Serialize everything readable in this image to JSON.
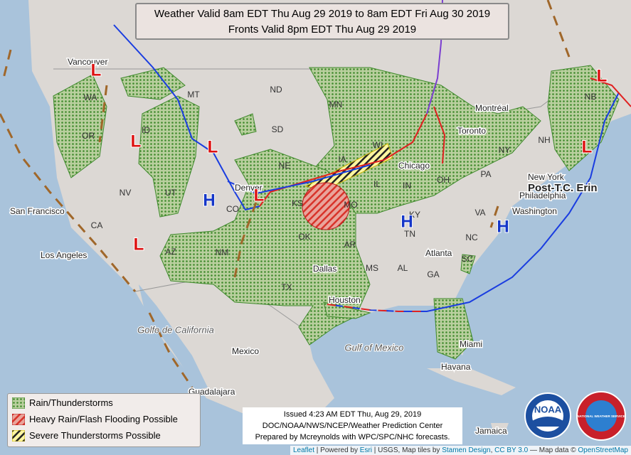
{
  "header": {
    "line1": "Weather Valid 8am EDT Thu Aug 29 2019 to 8am EDT Fri Aug 30 2019",
    "line2": "Fronts Valid 8pm EDT Thu Aug 29 2019"
  },
  "legend": {
    "items": [
      "Rain/Thunderstorms",
      "Heavy Rain/Flash Flooding Possible",
      "Severe Thunderstorms Possible"
    ]
  },
  "issued": {
    "line1": "Issued 4:23 AM EDT Thu, Aug 29, 2019",
    "line2": "DOC/NOAA/NWS/NCEP/Weather Prediction Center",
    "line3": "Prepared by Mcreynolds with WPC/SPC/NHC forecasts."
  },
  "attribution": [
    "Leaflet",
    " | Powered by ",
    "Esri",
    " | USGS, Map tiles by ",
    "Stamen Design",
    ", ",
    "CC BY 3.0",
    " — Map data © ",
    "OpenStreetMap"
  ],
  "logos": {
    "noaa": "NOAA",
    "nws": "NATIONAL WEATHER SERVICE"
  },
  "map": {
    "states": [
      "WA",
      "OR",
      "ID",
      "MT",
      "ND",
      "SD",
      "NE",
      "NV",
      "UT",
      "CO",
      "KS",
      "MN",
      "IA",
      "WI",
      "IL",
      "MO",
      "AZ",
      "NM",
      "OK",
      "TX",
      "AR",
      "MS",
      "AL",
      "GA",
      "TN",
      "KY",
      "IN",
      "OH",
      "PA",
      "NY",
      "NC",
      "SC",
      "VA",
      "CA",
      "NH",
      "NB"
    ],
    "cities": [
      "Vancouver",
      "San Francisco",
      "Los Angeles",
      "Denver",
      "Dallas",
      "Houston",
      "Chicago",
      "Toronto",
      "Montréal",
      "New York",
      "Philadelphia",
      "Washington",
      "Atlanta",
      "Miami",
      "Havana",
      "Guadalajara",
      "Mexico",
      "Jamaica"
    ],
    "water": [
      "Golfo de California",
      "Gulf of Mexico"
    ],
    "highs": [
      "H",
      "H",
      "H"
    ],
    "lows": [
      "L",
      "L",
      "L",
      "L",
      "L",
      "L",
      "L"
    ],
    "storm": "Post-T.C. Erin"
  }
}
